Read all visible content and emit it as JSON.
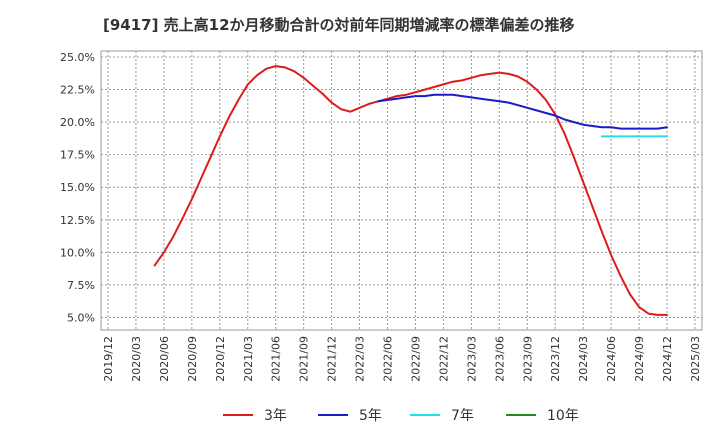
{
  "chart_data": {
    "type": "line",
    "title": "[9417]  売上高12か月移動合計の対前年同期増減率の標準偏差の推移",
    "xlabel": "",
    "ylabel": "",
    "x_ticks": [
      "2019/12",
      "2020/03",
      "2020/06",
      "2020/09",
      "2020/12",
      "2021/03",
      "2021/06",
      "2021/09",
      "2021/12",
      "2022/03",
      "2022/06",
      "2022/09",
      "2022/12",
      "2023/03",
      "2023/06",
      "2023/09",
      "2023/12",
      "2024/03",
      "2024/06",
      "2024/09",
      "2024/12",
      "2025/03"
    ],
    "y_ticks": [
      5.0,
      7.5,
      10.0,
      12.5,
      15.0,
      17.5,
      20.0,
      22.5,
      25.0
    ],
    "y_tick_labels": [
      "5.0%",
      "7.5%",
      "10.0%",
      "12.5%",
      "15.0%",
      "17.5%",
      "20.0%",
      "22.5%",
      "25.0%"
    ],
    "ylim": [
      4.5,
      25.0
    ],
    "grid": true,
    "legend_position": "bottom",
    "series": [
      {
        "name": "3年",
        "color": "#dd1c1c",
        "x": [
          "2020/05",
          "2020/06",
          "2020/07",
          "2020/08",
          "2020/09",
          "2020/10",
          "2020/11",
          "2020/12",
          "2021/01",
          "2021/02",
          "2021/03",
          "2021/04",
          "2021/05",
          "2021/06",
          "2021/07",
          "2021/08",
          "2021/09",
          "2021/10",
          "2021/11",
          "2021/12",
          "2022/01",
          "2022/02",
          "2022/03",
          "2022/04",
          "2022/05",
          "2022/06",
          "2022/07",
          "2022/08",
          "2022/09",
          "2022/10",
          "2022/11",
          "2022/12",
          "2023/01",
          "2023/02",
          "2023/03",
          "2023/04",
          "2023/05",
          "2023/06",
          "2023/07",
          "2023/08",
          "2023/09",
          "2023/10",
          "2023/11",
          "2023/12",
          "2024/01",
          "2024/02",
          "2024/03",
          "2024/04",
          "2024/05",
          "2024/06",
          "2024/07",
          "2024/08",
          "2024/09",
          "2024/10",
          "2024/11",
          "2024/12"
        ],
        "values": [
          9.0,
          10.0,
          11.2,
          12.6,
          14.1,
          15.7,
          17.3,
          18.9,
          20.4,
          21.7,
          22.9,
          23.6,
          24.1,
          24.3,
          24.2,
          23.9,
          23.4,
          22.8,
          22.2,
          21.5,
          21.0,
          20.8,
          21.1,
          21.4,
          21.6,
          21.8,
          22.0,
          22.1,
          22.3,
          22.5,
          22.7,
          22.9,
          23.1,
          23.2,
          23.4,
          23.6,
          23.7,
          23.8,
          23.7,
          23.5,
          23.1,
          22.5,
          21.7,
          20.6,
          19.1,
          17.3,
          15.4,
          13.5,
          11.6,
          9.8,
          8.2,
          6.8,
          5.8,
          5.3,
          5.2,
          5.2
        ]
      },
      {
        "name": "5年",
        "color": "#1c1cc4",
        "x": [
          "2022/05",
          "2022/06",
          "2022/07",
          "2022/08",
          "2022/09",
          "2022/10",
          "2022/11",
          "2022/12",
          "2023/01",
          "2023/02",
          "2023/03",
          "2023/04",
          "2023/05",
          "2023/06",
          "2023/07",
          "2023/08",
          "2023/09",
          "2023/10",
          "2023/11",
          "2023/12",
          "2024/01",
          "2024/02",
          "2024/03",
          "2024/04",
          "2024/05",
          "2024/06",
          "2024/07",
          "2024/08",
          "2024/09",
          "2024/10",
          "2024/11",
          "2024/12"
        ],
        "values": [
          21.6,
          21.7,
          21.8,
          21.9,
          22.0,
          22.0,
          22.1,
          22.1,
          22.1,
          22.0,
          21.9,
          21.8,
          21.7,
          21.6,
          21.5,
          21.3,
          21.1,
          20.9,
          20.7,
          20.5,
          20.2,
          20.0,
          19.8,
          19.7,
          19.6,
          19.6,
          19.5,
          19.5,
          19.5,
          19.5,
          19.5,
          19.6
        ]
      },
      {
        "name": "7年",
        "color": "#22e0e8",
        "x": [
          "2024/05",
          "2024/06",
          "2024/07",
          "2024/08",
          "2024/09",
          "2024/10",
          "2024/11",
          "2024/12"
        ],
        "values": [
          18.9,
          18.9,
          18.9,
          18.9,
          18.9,
          18.9,
          18.9,
          18.9
        ]
      },
      {
        "name": "10年",
        "color": "#1c8c1c",
        "x": [],
        "values": []
      }
    ]
  }
}
